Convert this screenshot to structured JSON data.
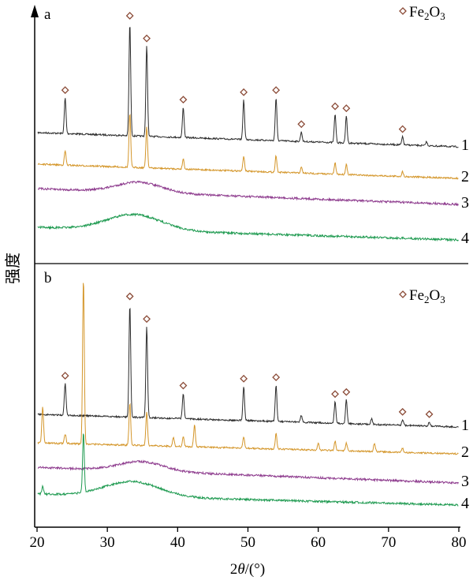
{
  "y_axis_label": "强度",
  "x_axis": {
    "label_prefix": "2",
    "label_symbol": "θ",
    "label_unit": "/(°)",
    "range": [
      20,
      80
    ],
    "ticks": [
      "20",
      "30",
      "40",
      "50",
      "60",
      "70",
      "80"
    ]
  },
  "marker_legend": {
    "symbol": "diamond",
    "base": "Fe",
    "sub1": "2",
    "mid": "O",
    "sub2": "3"
  },
  "colors": {
    "1": "#2b2b2b",
    "2": "#d4962a",
    "3": "#8e3c8e",
    "4": "#1e9a50",
    "marker_stroke": "#8a4a36",
    "axis": "#000000"
  },
  "chart_data": [
    {
      "type": "line",
      "panel": "a",
      "xlim": [
        20,
        80
      ],
      "y_scale": "arbitrary intensity",
      "series": [
        {
          "name": "1",
          "baseline_start": 0,
          "baseline_end": -18,
          "peaks": [
            [
              24.0,
              45
            ],
            [
              33.2,
              142
            ],
            [
              35.6,
              114
            ],
            [
              40.8,
              38
            ],
            [
              49.4,
              50
            ],
            [
              54.0,
              54
            ],
            [
              57.6,
              12
            ],
            [
              62.4,
              36
            ],
            [
              64.0,
              34
            ],
            [
              72.0,
              10
            ],
            [
              75.4,
              5
            ]
          ],
          "marked_peaks": [
            24.0,
            33.2,
            35.6,
            40.8,
            49.4,
            54.0,
            57.6,
            62.4,
            64.0,
            72.0
          ]
        },
        {
          "name": "2",
          "baseline_start": 0,
          "baseline_end": -18,
          "peaks": [
            [
              24.0,
              18
            ],
            [
              33.2,
              68
            ],
            [
              35.6,
              52
            ],
            [
              40.8,
              13
            ],
            [
              49.4,
              19
            ],
            [
              54.0,
              21
            ],
            [
              57.6,
              7
            ],
            [
              62.4,
              14
            ],
            [
              64.0,
              13
            ],
            [
              72.0,
              6
            ]
          ],
          "marked_peaks": []
        },
        {
          "name": "3",
          "baseline_start": 0,
          "baseline_end": -20,
          "hump": {
            "center": 34.5,
            "height": 13,
            "width": 4.5
          },
          "peaks": [],
          "marked_peaks": []
        },
        {
          "name": "4",
          "baseline_start": 0,
          "baseline_end": -16,
          "hump": {
            "center": 33.8,
            "height": 20,
            "width": 5.5
          },
          "peaks": [],
          "marked_peaks": []
        }
      ]
    },
    {
      "type": "line",
      "panel": "b",
      "xlim": [
        20,
        80
      ],
      "y_scale": "arbitrary intensity",
      "series": [
        {
          "name": "1",
          "baseline_start": 0,
          "baseline_end": -16,
          "peaks": [
            [
              24.0,
              40
            ],
            [
              33.2,
              143
            ],
            [
              35.6,
              115
            ],
            [
              40.8,
              32
            ],
            [
              49.4,
              43
            ],
            [
              54.0,
              46
            ],
            [
              57.6,
              9
            ],
            [
              62.4,
              27
            ],
            [
              64.0,
              30
            ],
            [
              67.6,
              7
            ],
            [
              72.0,
              7
            ],
            [
              75.8,
              5
            ]
          ],
          "marked_peaks": [
            24.0,
            33.2,
            35.6,
            40.8,
            49.4,
            54.0,
            62.4,
            64.0,
            72.0,
            75.8
          ]
        },
        {
          "name": "2",
          "baseline_start": 0,
          "baseline_end": -14,
          "peaks": [
            [
              20.8,
              46
            ],
            [
              24.0,
              12
            ],
            [
              26.6,
              210
            ],
            [
              33.2,
              53
            ],
            [
              35.6,
              43
            ],
            [
              39.4,
              11
            ],
            [
              40.8,
              13
            ],
            [
              42.4,
              28
            ],
            [
              49.4,
              15
            ],
            [
              54.0,
              19
            ],
            [
              60.0,
              9
            ],
            [
              62.4,
              12
            ],
            [
              64.0,
              10
            ],
            [
              68.0,
              11
            ],
            [
              72.0,
              5
            ]
          ],
          "marked_peaks": []
        },
        {
          "name": "3",
          "baseline_start": 0,
          "baseline_end": -20,
          "hump": {
            "center": 34.8,
            "height": 12,
            "width": 4.5
          },
          "peaks": [],
          "marked_peaks": []
        },
        {
          "name": "4",
          "baseline_start": 0,
          "baseline_end": -14,
          "hump": {
            "center": 33.5,
            "height": 19,
            "width": 5.5
          },
          "peaks": [
            [
              20.8,
              10
            ],
            [
              26.6,
              75
            ]
          ],
          "marked_peaks": []
        }
      ]
    }
  ]
}
